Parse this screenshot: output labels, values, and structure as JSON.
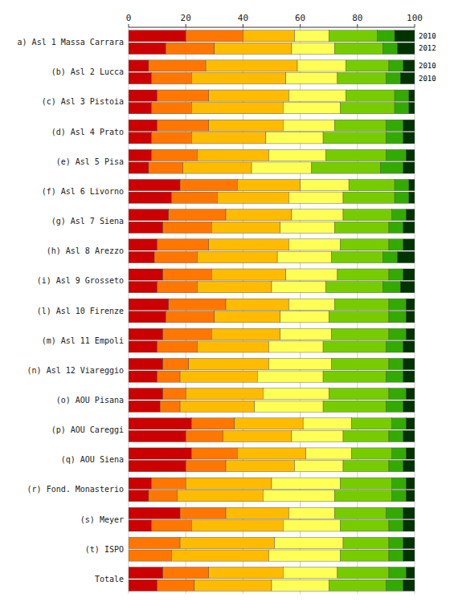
{
  "chart_data": {
    "type": "bar",
    "orientation": "horizontal",
    "stacked": true,
    "categories": [
      "a) Asl 1 Massa Carrara",
      "(b) Asl 2 Lucca",
      "(c) Asl 3 Pistoia",
      "(d) Asl 4 Prato",
      "(e) Asl 5 Pisa",
      "(f) Asl 6 Livorno",
      "(g) Asl 7 Siena",
      "(h) Asl 8 Arezzo",
      "(i) Asl 9 Grosseto",
      "(l) Asl 10 Firenze",
      "(m) Asl 11 Empoli",
      "(n) Asl 12 Viareggio",
      "(o) AOU Pisana",
      "(p) AOU Careggi",
      "(q) AOU Siena",
      "(r) Fond. Monasterio",
      "(s) Meyer",
      "(t) ISPO",
      "Totale"
    ],
    "values": [
      [
        [
          20,
          20,
          18,
          12,
          17,
          6,
          7
        ],
        [
          13,
          17,
          27,
          15,
          17,
          5,
          6
        ]
      ],
      [
        [
          7,
          20,
          32,
          17,
          15,
          5,
          4
        ],
        [
          8,
          14,
          33,
          18,
          17,
          5,
          5
        ]
      ],
      [
        [
          10,
          18,
          28,
          20,
          17,
          5,
          2
        ],
        [
          8,
          14,
          32,
          20,
          19,
          5,
          2
        ]
      ],
      [
        [
          10,
          18,
          26,
          18,
          18,
          6,
          4
        ],
        [
          8,
          14,
          26,
          20,
          22,
          6,
          4
        ]
      ],
      [
        [
          8,
          16,
          25,
          20,
          21,
          7,
          3
        ],
        [
          7,
          12,
          24,
          21,
          24,
          8,
          4
        ]
      ],
      [
        [
          18,
          20,
          22,
          17,
          16,
          5,
          2
        ],
        [
          15,
          16,
          25,
          19,
          18,
          5,
          2
        ]
      ],
      [
        [
          14,
          20,
          23,
          18,
          17,
          5,
          3
        ],
        [
          12,
          17,
          24,
          19,
          19,
          5,
          4
        ]
      ],
      [
        [
          10,
          18,
          28,
          18,
          17,
          5,
          4
        ],
        [
          9,
          15,
          28,
          19,
          18,
          5,
          6
        ]
      ],
      [
        [
          12,
          17,
          26,
          18,
          18,
          5,
          4
        ],
        [
          10,
          14,
          26,
          19,
          20,
          6,
          5
        ]
      ],
      [
        [
          14,
          20,
          22,
          16,
          19,
          6,
          3
        ],
        [
          13,
          17,
          23,
          17,
          21,
          6,
          3
        ]
      ],
      [
        [
          12,
          17,
          24,
          18,
          20,
          6,
          3
        ],
        [
          10,
          14,
          25,
          19,
          22,
          6,
          4
        ]
      ],
      [
        [
          12,
          9,
          28,
          22,
          20,
          5,
          4
        ],
        [
          10,
          8,
          27,
          23,
          22,
          6,
          4
        ]
      ],
      [
        [
          12,
          8,
          27,
          23,
          21,
          6,
          3
        ],
        [
          11,
          7,
          26,
          24,
          22,
          6,
          4
        ]
      ],
      [
        [
          22,
          15,
          24,
          17,
          14,
          5,
          3
        ],
        [
          20,
          13,
          24,
          18,
          16,
          5,
          4
        ]
      ],
      [
        [
          22,
          16,
          24,
          16,
          14,
          5,
          3
        ],
        [
          20,
          14,
          24,
          17,
          16,
          5,
          4
        ]
      ],
      [
        [
          8,
          12,
          30,
          24,
          18,
          5,
          3
        ],
        [
          7,
          10,
          30,
          25,
          20,
          5,
          3
        ]
      ],
      [
        [
          18,
          16,
          22,
          16,
          18,
          6,
          4
        ],
        [
          8,
          14,
          32,
          20,
          17,
          5,
          4
        ]
      ],
      [
        [
          0,
          18,
          33,
          24,
          16,
          5,
          4
        ],
        [
          0,
          15,
          34,
          25,
          17,
          5,
          4
        ]
      ],
      [
        [
          12,
          16,
          26,
          19,
          18,
          6,
          3
        ],
        [
          10,
          13,
          27,
          20,
          20,
          6,
          4
        ]
      ]
    ],
    "colors": [
      "#cc0000",
      "#ff7700",
      "#ffbb00",
      "#ffff55",
      "#77cc00",
      "#33aa00",
      "#003300"
    ],
    "annotations": [
      [
        "2010",
        "2012"
      ],
      [
        "2010",
        "2010"
      ]
    ],
    "xlim": [
      0,
      100
    ],
    "xticks": [
      0,
      20,
      40,
      60,
      80,
      100
    ],
    "grid": true
  }
}
